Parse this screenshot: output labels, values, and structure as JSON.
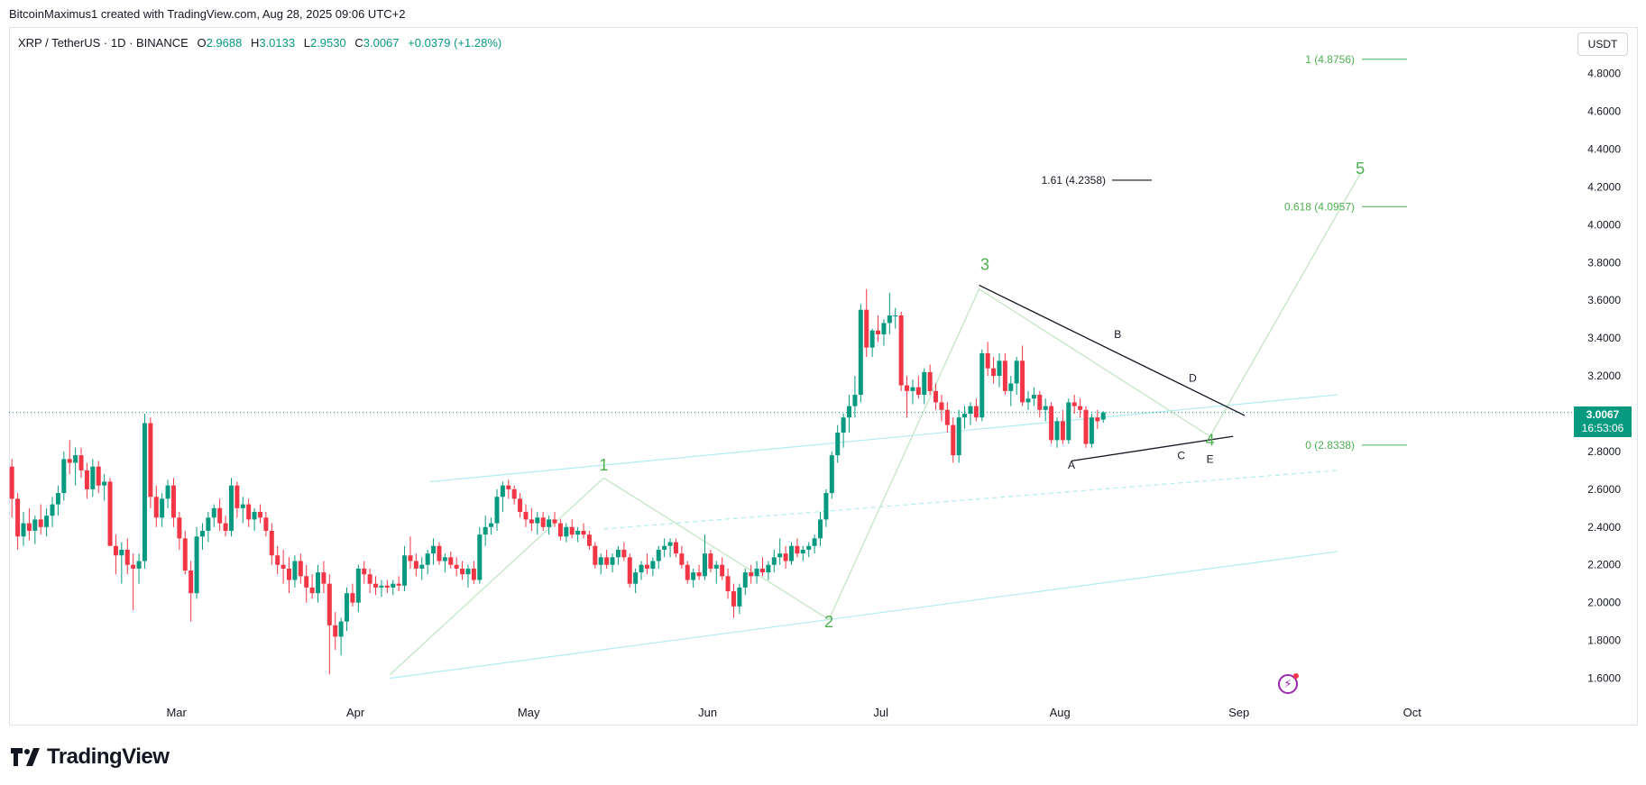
{
  "header": {
    "attribution": "BitcoinMaximus1 created with TradingView.com, Aug 28, 2025 09:06 UTC+2"
  },
  "legend": {
    "symbol": "XRP / TetherUS · 1D · BINANCE",
    "open_label": "O",
    "open": "2.9688",
    "high_label": "H",
    "high": "3.0133",
    "low_label": "L",
    "low": "2.9530",
    "close_label": "C",
    "close": "3.0067",
    "change": "+0.0379 (+1.28%)"
  },
  "currency_button": "USDT",
  "last_price": {
    "value": "3.0067",
    "countdown": "16:53:06"
  },
  "logo_text": "TradingView",
  "colors": {
    "up": "#089981",
    "down": "#f23645",
    "wave": "#4caf50",
    "fib_green": "#4caf50",
    "channel": "#b2ebf2"
  },
  "chart_data": {
    "type": "candlestick",
    "ylim": [
      1.5,
      5.0
    ],
    "y_ticks": [
      "4.8000",
      "4.6000",
      "4.4000",
      "4.2000",
      "4.0000",
      "3.8000",
      "3.6000",
      "3.4000",
      "3.2000",
      "3.0000",
      "2.8000",
      "2.6000",
      "2.4000",
      "2.2000",
      "2.0000",
      "1.8000",
      "1.6000"
    ],
    "x_ticks": [
      {
        "label": "Mar",
        "date": "2025-03-01"
      },
      {
        "label": "Apr",
        "date": "2025-04-01"
      },
      {
        "label": "May",
        "date": "2025-05-01"
      },
      {
        "label": "Jun",
        "date": "2025-06-01"
      },
      {
        "label": "Jul",
        "date": "2025-07-01"
      },
      {
        "label": "Aug",
        "date": "2025-08-01"
      },
      {
        "label": "Sep",
        "date": "2025-09-01"
      },
      {
        "label": "Oct",
        "date": "2025-10-01"
      }
    ],
    "xlim": [
      "2025-01-31",
      "2025-10-29"
    ],
    "candles_start": "2025-01-31",
    "candles_ohlc": [
      [
        2.72,
        2.76,
        2.45,
        2.55
      ],
      [
        2.55,
        2.58,
        2.28,
        2.35
      ],
      [
        2.35,
        2.48,
        2.3,
        2.42
      ],
      [
        2.42,
        2.5,
        2.33,
        2.38
      ],
      [
        2.38,
        2.46,
        2.31,
        2.44
      ],
      [
        2.44,
        2.52,
        2.36,
        2.4
      ],
      [
        2.4,
        2.5,
        2.35,
        2.46
      ],
      [
        2.46,
        2.56,
        2.4,
        2.52
      ],
      [
        2.52,
        2.62,
        2.46,
        2.58
      ],
      [
        2.58,
        2.8,
        2.54,
        2.76
      ],
      [
        2.76,
        2.86,
        2.68,
        2.74
      ],
      [
        2.74,
        2.82,
        2.62,
        2.78
      ],
      [
        2.78,
        2.82,
        2.66,
        2.7
      ],
      [
        2.7,
        2.74,
        2.55,
        2.6
      ],
      [
        2.6,
        2.76,
        2.56,
        2.72
      ],
      [
        2.72,
        2.75,
        2.58,
        2.62
      ],
      [
        2.62,
        2.68,
        2.54,
        2.64
      ],
      [
        2.64,
        2.66,
        2.4,
        2.3
      ],
      [
        2.3,
        2.36,
        2.15,
        2.25
      ],
      [
        2.25,
        2.32,
        2.1,
        2.28
      ],
      [
        2.28,
        2.34,
        2.15,
        2.2
      ],
      [
        2.2,
        2.26,
        1.96,
        2.18
      ],
      [
        2.18,
        2.26,
        2.1,
        2.22
      ],
      [
        2.22,
        3.0,
        2.18,
        2.95
      ],
      [
        2.95,
        2.98,
        2.5,
        2.56
      ],
      [
        2.56,
        2.62,
        2.4,
        2.45
      ],
      [
        2.45,
        2.58,
        2.4,
        2.55
      ],
      [
        2.55,
        2.65,
        2.5,
        2.62
      ],
      [
        2.62,
        2.66,
        2.4,
        2.45
      ],
      [
        2.45,
        2.48,
        2.28,
        2.34
      ],
      [
        2.34,
        2.38,
        2.15,
        2.17
      ],
      [
        2.17,
        2.22,
        1.9,
        2.05
      ],
      [
        2.05,
        2.4,
        2.02,
        2.35
      ],
      [
        2.35,
        2.42,
        2.28,
        2.38
      ],
      [
        2.38,
        2.48,
        2.32,
        2.45
      ],
      [
        2.45,
        2.52,
        2.4,
        2.5
      ],
      [
        2.5,
        2.55,
        2.38,
        2.42
      ],
      [
        2.42,
        2.46,
        2.35,
        2.38
      ],
      [
        2.38,
        2.66,
        2.35,
        2.62
      ],
      [
        2.62,
        2.64,
        2.45,
        2.5
      ],
      [
        2.5,
        2.56,
        2.42,
        2.52
      ],
      [
        2.52,
        2.55,
        2.4,
        2.44
      ],
      [
        2.44,
        2.5,
        2.38,
        2.48
      ],
      [
        2.48,
        2.52,
        2.42,
        2.45
      ],
      [
        2.45,
        2.48,
        2.35,
        2.38
      ],
      [
        2.38,
        2.42,
        2.2,
        2.25
      ],
      [
        2.25,
        2.3,
        2.15,
        2.2
      ],
      [
        2.2,
        2.28,
        2.1,
        2.18
      ],
      [
        2.18,
        2.24,
        2.05,
        2.12
      ],
      [
        2.12,
        2.25,
        2.08,
        2.22
      ],
      [
        2.22,
        2.26,
        2.1,
        2.14
      ],
      [
        2.14,
        2.2,
        2.0,
        2.08
      ],
      [
        2.08,
        2.15,
        2.02,
        2.05
      ],
      [
        2.05,
        2.2,
        2.0,
        2.16
      ],
      [
        2.16,
        2.22,
        2.05,
        2.1
      ],
      [
        2.1,
        2.15,
        1.62,
        1.88
      ],
      [
        1.88,
        1.95,
        1.75,
        1.82
      ],
      [
        1.82,
        1.92,
        1.72,
        1.9
      ],
      [
        1.9,
        2.08,
        1.85,
        2.05
      ],
      [
        2.05,
        2.1,
        1.98,
        2.0
      ],
      [
        2.0,
        2.2,
        1.95,
        2.18
      ],
      [
        2.18,
        2.22,
        2.1,
        2.15
      ],
      [
        2.15,
        2.18,
        2.05,
        2.1
      ],
      [
        2.1,
        2.14,
        2.04,
        2.08
      ],
      [
        2.08,
        2.12,
        2.03,
        2.09
      ],
      [
        2.09,
        2.12,
        2.05,
        2.08
      ],
      [
        2.08,
        2.12,
        2.04,
        2.1
      ],
      [
        2.1,
        2.14,
        2.06,
        2.09
      ],
      [
        2.09,
        2.3,
        2.06,
        2.25
      ],
      [
        2.25,
        2.35,
        2.18,
        2.22
      ],
      [
        2.22,
        2.26,
        2.14,
        2.18
      ],
      [
        2.18,
        2.24,
        2.12,
        2.2
      ],
      [
        2.2,
        2.28,
        2.15,
        2.26
      ],
      [
        2.26,
        2.34,
        2.2,
        2.3
      ],
      [
        2.3,
        2.32,
        2.2,
        2.22
      ],
      [
        2.22,
        2.26,
        2.16,
        2.24
      ],
      [
        2.24,
        2.27,
        2.18,
        2.2
      ],
      [
        2.2,
        2.24,
        2.14,
        2.18
      ],
      [
        2.18,
        2.22,
        2.12,
        2.15
      ],
      [
        2.15,
        2.2,
        2.08,
        2.18
      ],
      [
        2.18,
        2.22,
        2.1,
        2.12
      ],
      [
        2.12,
        2.4,
        2.1,
        2.36
      ],
      [
        2.36,
        2.46,
        2.3,
        2.4
      ],
      [
        2.4,
        2.45,
        2.36,
        2.42
      ],
      [
        2.42,
        2.6,
        2.38,
        2.56
      ],
      [
        2.56,
        2.64,
        2.48,
        2.62
      ],
      [
        2.62,
        2.65,
        2.55,
        2.6
      ],
      [
        2.6,
        2.62,
        2.52,
        2.55
      ],
      [
        2.55,
        2.58,
        2.45,
        2.48
      ],
      [
        2.48,
        2.52,
        2.4,
        2.44
      ],
      [
        2.44,
        2.5,
        2.38,
        2.42
      ],
      [
        2.42,
        2.48,
        2.36,
        2.45
      ],
      [
        2.45,
        2.48,
        2.38,
        2.4
      ],
      [
        2.4,
        2.46,
        2.36,
        2.44
      ],
      [
        2.44,
        2.48,
        2.4,
        2.42
      ],
      [
        2.42,
        2.44,
        2.33,
        2.35
      ],
      [
        2.35,
        2.42,
        2.32,
        2.4
      ],
      [
        2.4,
        2.44,
        2.34,
        2.36
      ],
      [
        2.36,
        2.4,
        2.32,
        2.38
      ],
      [
        2.38,
        2.42,
        2.34,
        2.36
      ],
      [
        2.36,
        2.38,
        2.28,
        2.3
      ],
      [
        2.3,
        2.32,
        2.18,
        2.2
      ],
      [
        2.2,
        2.26,
        2.15,
        2.24
      ],
      [
        2.24,
        2.28,
        2.18,
        2.2
      ],
      [
        2.2,
        2.26,
        2.16,
        2.24
      ],
      [
        2.24,
        2.3,
        2.2,
        2.28
      ],
      [
        2.28,
        2.32,
        2.22,
        2.24
      ],
      [
        2.24,
        2.26,
        2.08,
        2.1
      ],
      [
        2.1,
        2.18,
        2.05,
        2.16
      ],
      [
        2.16,
        2.22,
        2.12,
        2.2
      ],
      [
        2.2,
        2.26,
        2.15,
        2.18
      ],
      [
        2.18,
        2.24,
        2.14,
        2.22
      ],
      [
        2.22,
        2.3,
        2.18,
        2.28
      ],
      [
        2.28,
        2.34,
        2.24,
        2.3
      ],
      [
        2.3,
        2.34,
        2.24,
        2.32
      ],
      [
        2.32,
        2.34,
        2.24,
        2.26
      ],
      [
        2.26,
        2.3,
        2.18,
        2.2
      ],
      [
        2.2,
        2.22,
        2.1,
        2.12
      ],
      [
        2.12,
        2.18,
        2.08,
        2.16
      ],
      [
        2.16,
        2.2,
        2.12,
        2.14
      ],
      [
        2.14,
        2.36,
        2.12,
        2.26
      ],
      [
        2.26,
        2.28,
        2.16,
        2.18
      ],
      [
        2.18,
        2.22,
        2.1,
        2.2
      ],
      [
        2.2,
        2.24,
        2.12,
        2.14
      ],
      [
        2.14,
        2.18,
        2.02,
        2.06
      ],
      [
        2.06,
        2.1,
        1.92,
        1.98
      ],
      [
        1.98,
        2.1,
        1.94,
        2.08
      ],
      [
        2.08,
        2.18,
        2.04,
        2.16
      ],
      [
        2.16,
        2.2,
        2.1,
        2.14
      ],
      [
        2.14,
        2.22,
        2.1,
        2.18
      ],
      [
        2.18,
        2.24,
        2.14,
        2.16
      ],
      [
        2.16,
        2.22,
        2.12,
        2.2
      ],
      [
        2.2,
        2.28,
        2.16,
        2.24
      ],
      [
        2.24,
        2.34,
        2.2,
        2.26
      ],
      [
        2.26,
        2.3,
        2.18,
        2.22
      ],
      [
        2.22,
        2.32,
        2.2,
        2.3
      ],
      [
        2.3,
        2.34,
        2.24,
        2.26
      ],
      [
        2.26,
        2.3,
        2.22,
        2.28
      ],
      [
        2.28,
        2.32,
        2.24,
        2.3
      ],
      [
        2.3,
        2.36,
        2.26,
        2.34
      ],
      [
        2.34,
        2.48,
        2.3,
        2.44
      ],
      [
        2.44,
        2.6,
        2.4,
        2.58
      ],
      [
        2.58,
        2.8,
        2.55,
        2.78
      ],
      [
        2.78,
        2.94,
        2.74,
        2.9
      ],
      [
        2.9,
        3.0,
        2.82,
        2.98
      ],
      [
        2.98,
        3.1,
        2.9,
        3.04
      ],
      [
        3.04,
        3.2,
        2.98,
        3.1
      ],
      [
        3.1,
        3.58,
        3.06,
        3.55
      ],
      [
        3.55,
        3.66,
        3.3,
        3.35
      ],
      [
        3.35,
        3.45,
        3.3,
        3.44
      ],
      [
        3.44,
        3.52,
        3.38,
        3.42
      ],
      [
        3.42,
        3.5,
        3.36,
        3.48
      ],
      [
        3.48,
        3.64,
        3.42,
        3.52
      ],
      [
        3.52,
        3.56,
        3.45,
        3.52
      ],
      [
        3.52,
        3.54,
        3.12,
        3.15
      ],
      [
        3.15,
        3.2,
        2.98,
        3.12
      ],
      [
        3.12,
        3.18,
        3.05,
        3.14
      ],
      [
        3.14,
        3.2,
        3.08,
        3.1
      ],
      [
        3.1,
        3.24,
        3.05,
        3.22
      ],
      [
        3.22,
        3.26,
        3.1,
        3.12
      ],
      [
        3.12,
        3.16,
        3.02,
        3.06
      ],
      [
        3.06,
        3.1,
        2.96,
        3.02
      ],
      [
        3.02,
        3.06,
        2.9,
        2.94
      ],
      [
        2.94,
        2.98,
        2.74,
        2.78
      ],
      [
        2.78,
        3.02,
        2.74,
        2.98
      ],
      [
        2.98,
        3.04,
        2.92,
        3.0
      ],
      [
        3.0,
        3.06,
        2.94,
        3.04
      ],
      [
        3.04,
        3.08,
        2.96,
        2.98
      ],
      [
        2.98,
        3.34,
        2.96,
        3.32
      ],
      [
        3.32,
        3.38,
        3.2,
        3.24
      ],
      [
        3.24,
        3.3,
        3.16,
        3.2
      ],
      [
        3.2,
        3.32,
        3.14,
        3.28
      ],
      [
        3.28,
        3.32,
        3.1,
        3.12
      ],
      [
        3.12,
        3.2,
        3.04,
        3.16
      ],
      [
        3.16,
        3.3,
        3.1,
        3.28
      ],
      [
        3.28,
        3.36,
        3.04,
        3.06
      ],
      [
        3.06,
        3.12,
        3.02,
        3.08
      ],
      [
        3.08,
        3.14,
        3.04,
        3.1
      ],
      [
        3.1,
        3.12,
        2.98,
        3.02
      ],
      [
        3.02,
        3.08,
        2.96,
        3.04
      ],
      [
        3.04,
        3.06,
        2.84,
        2.86
      ],
      [
        2.86,
        2.98,
        2.82,
        2.96
      ],
      [
        2.96,
        3.02,
        2.84,
        2.86
      ],
      [
        2.86,
        3.08,
        2.84,
        3.06
      ],
      [
        3.06,
        3.1,
        3.0,
        3.04
      ],
      [
        3.04,
        3.08,
        2.98,
        3.02
      ],
      [
        3.02,
        3.04,
        2.82,
        2.84
      ],
      [
        2.84,
        3.0,
        2.82,
        2.98
      ],
      [
        2.98,
        3.02,
        2.92,
        2.96
      ],
      [
        2.9688,
        3.0133,
        2.953,
        3.0067
      ]
    ],
    "wave_labels": [
      {
        "label": "1",
        "date": "2025-05-14",
        "price": 2.7
      },
      {
        "label": "2",
        "date": "2025-06-22",
        "price": 1.87
      },
      {
        "label": "3",
        "date": "2025-07-19",
        "price": 3.76
      },
      {
        "label": "4",
        "date": "2025-08-27",
        "price": 2.83
      },
      {
        "label": "5",
        "date": "2025-09-22",
        "price": 4.27
      }
    ],
    "triangle_labels": [
      {
        "label": "A",
        "date": "2025-08-03",
        "price": 2.71
      },
      {
        "label": "B",
        "date": "2025-08-11",
        "price": 3.4
      },
      {
        "label": "C",
        "date": "2025-08-22",
        "price": 2.76
      },
      {
        "label": "D",
        "date": "2025-08-24",
        "price": 3.17
      },
      {
        "label": "E",
        "date": "2025-08-27",
        "price": 2.74
      }
    ],
    "fib_levels": [
      {
        "label": "1 (4.8756)",
        "price": 4.8756,
        "color": "#4caf50"
      },
      {
        "label": "0.618 (4.0957)",
        "price": 4.0957,
        "color": "#4caf50"
      },
      {
        "label": "0 (2.8338)",
        "price": 2.8338,
        "color": "#4caf50"
      }
    ],
    "extension_level": {
      "label": "1.61 (4.2358)",
      "price": 4.2358,
      "color": "#131722"
    }
  }
}
